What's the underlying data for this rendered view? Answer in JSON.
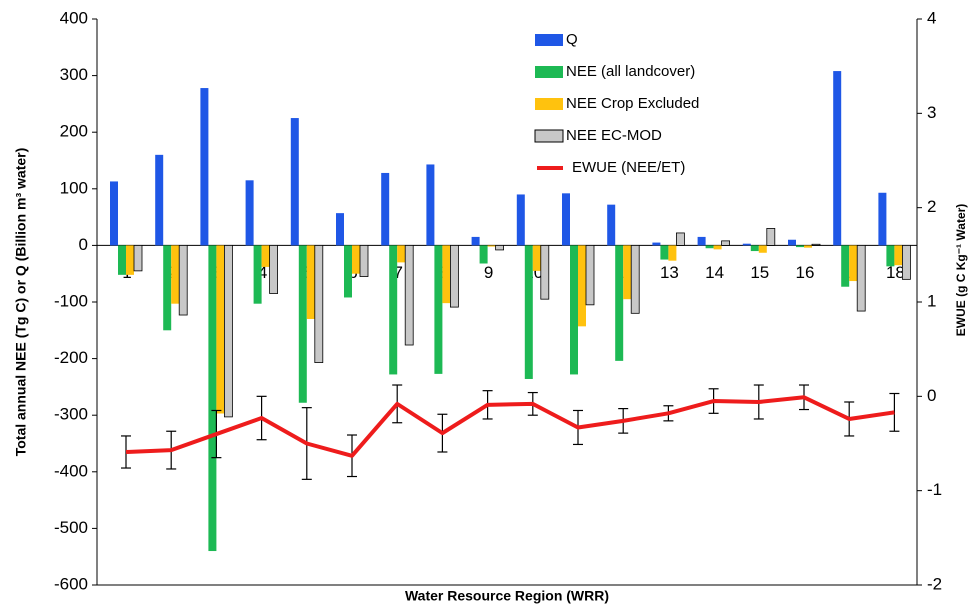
{
  "chart_data": {
    "type": "bar",
    "x_label": "Water Resource Region (WRR)",
    "y_label": "Total annual NEE (Tg C) or Q (Billion m³ water)",
    "y2_label": "EWUE (g C Kg⁻¹ Water)",
    "categories": [
      "1",
      "2",
      "3",
      "4",
      "5",
      "6",
      "7",
      "8",
      "9",
      "10",
      "11",
      "12",
      "13",
      "14",
      "15",
      "16",
      "17",
      "18"
    ],
    "ylim": [
      -600,
      400
    ],
    "yticks": [
      -600,
      -500,
      -400,
      -300,
      -200,
      -100,
      0,
      100,
      200,
      300,
      400
    ],
    "y2lim": [
      -2,
      4
    ],
    "y2ticks": [
      -2,
      -1,
      0,
      1,
      2,
      3,
      4
    ],
    "series": [
      {
        "name": "Q",
        "color": "#1f57e6",
        "values": [
          113,
          160,
          278,
          115,
          225,
          57,
          128,
          143,
          15,
          90,
          92,
          72,
          5,
          15,
          3,
          10,
          308,
          93
        ]
      },
      {
        "name": "NEE (all landcover)",
        "color": "#1db954",
        "values": [
          -52,
          -150,
          -540,
          -103,
          -278,
          -92,
          -228,
          -227,
          -32,
          -236,
          -228,
          -204,
          -25,
          -5,
          -10,
          -3,
          -73,
          -37
        ]
      },
      {
        "name": "NEE Crop Excluded",
        "color": "#ffc20e",
        "values": [
          -52,
          -103,
          -297,
          -38,
          -130,
          -50,
          -30,
          -102,
          -2,
          -45,
          -143,
          -95,
          -27,
          -7,
          -13,
          -4,
          -63,
          -35
        ]
      },
      {
        "name": "NEE EC-MOD",
        "color": "#c8c8c8",
        "values": [
          -45,
          -123,
          -303,
          -85,
          -207,
          -55,
          -176,
          -109,
          -8,
          -95,
          -105,
          -120,
          22,
          8,
          30,
          2,
          -116,
          -60
        ]
      },
      {
        "name": "EWUE (NEE/ET)",
        "color": "#ee1c1c",
        "type": "line",
        "axis": "y2",
        "values": [
          -0.59,
          -0.57,
          -0.4,
          -0.23,
          -0.5,
          -0.63,
          -0.08,
          -0.39,
          -0.09,
          -0.08,
          -0.33,
          -0.26,
          -0.18,
          -0.05,
          -0.06,
          -0.01,
          -0.24,
          -0.17
        ],
        "errors": [
          0.17,
          0.2,
          0.25,
          0.23,
          0.38,
          0.22,
          0.2,
          0.2,
          0.15,
          0.12,
          0.18,
          0.13,
          0.08,
          0.13,
          0.18,
          0.13,
          0.18,
          0.2
        ]
      }
    ]
  }
}
